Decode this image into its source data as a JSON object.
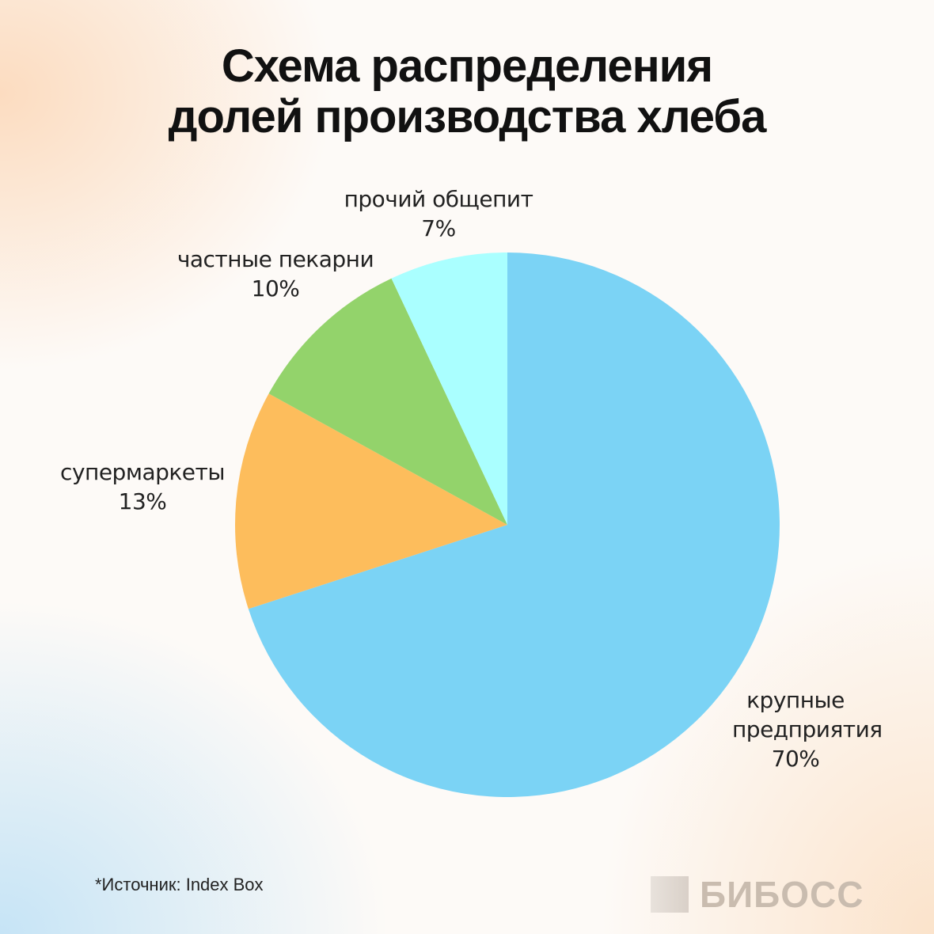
{
  "title_line1": "Схема распределения",
  "title_line2": "долей производства хлеба",
  "chart_data": {
    "type": "pie",
    "title": "Схема распределения долей производства хлеба",
    "slices": [
      {
        "label": "крупные предприятия",
        "value": 70,
        "value_label": "70%",
        "color": "#7bd3f5"
      },
      {
        "label": "супермаркеты",
        "value": 13,
        "value_label": "13%",
        "color": "#fdbd5c"
      },
      {
        "label": "частные пекарни",
        "value": 10,
        "value_label": "10%",
        "color": "#93d36b"
      },
      {
        "label": "прочий общепит",
        "value": 7,
        "value_label": "7%",
        "color": "#aaffff"
      }
    ],
    "start_angle": "top",
    "direction": "clockwise"
  },
  "source": "*Источник: Index Box",
  "logo": "БИБОСС"
}
